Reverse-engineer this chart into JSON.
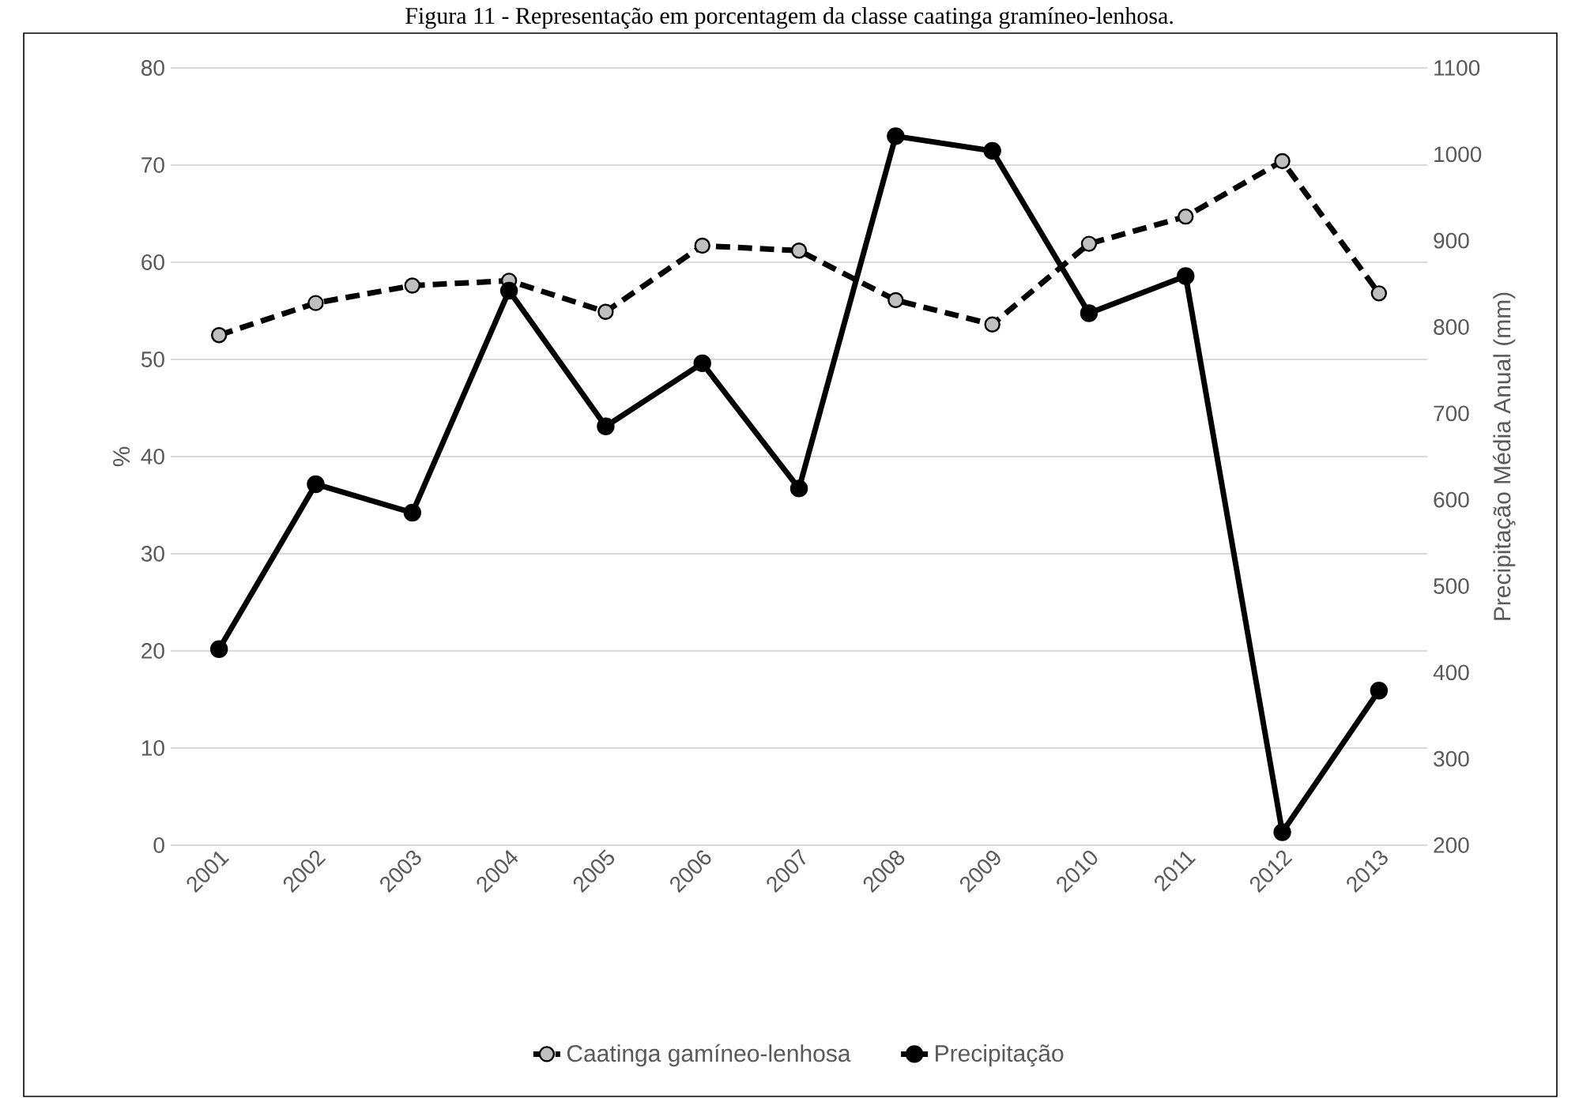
{
  "chart_data": {
    "type": "line",
    "title": "Figura 11 - Representação em porcentagem da classe caatinga gramíneo-lenhosa.",
    "categories": [
      "2001",
      "2002",
      "2003",
      "2004",
      "2005",
      "2006",
      "2007",
      "2008",
      "2009",
      "2010",
      "2011",
      "2012",
      "2013"
    ],
    "series": [
      {
        "name": "Caatinga gamíneo-lenhosa",
        "color": "#000000",
        "line_style": "dashed",
        "values": [
          52.5,
          55.8,
          57.6,
          58.1,
          54.9,
          61.7,
          61.2,
          56.1,
          53.6,
          61.9,
          64.7,
          70.4,
          56.8
        ]
      },
      {
        "name": "Precipitação",
        "color": "#000000",
        "line_style": "solid",
        "axis": "y2",
        "values": [
          427,
          618,
          585,
          842,
          685,
          758,
          613,
          1021,
          1004,
          816,
          859,
          215,
          379
        ]
      }
    ],
    "ylabel": "%",
    "y2label": "Precipitação Média Anual (mm)",
    "ylim": [
      0,
      80
    ],
    "yticks": [
      0,
      10,
      20,
      30,
      40,
      50,
      60,
      70,
      80
    ],
    "y2lim": [
      200,
      1100
    ],
    "y2ticks": [
      200,
      300,
      400,
      500,
      600,
      700,
      800,
      900,
      1000,
      1100
    ],
    "grid": "y",
    "legend": "bottom",
    "marker": "circle"
  }
}
